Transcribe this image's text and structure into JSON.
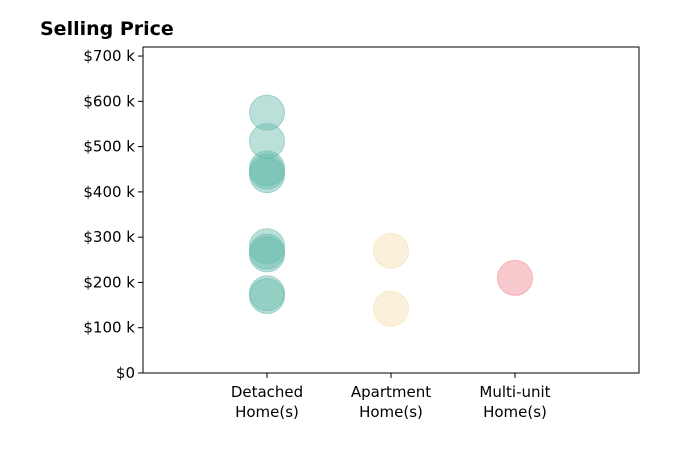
{
  "chart_data": {
    "type": "scatter",
    "title": "Selling Price",
    "xlabel": "",
    "ylabel": "",
    "categories": [
      [
        "Detached",
        "Home(s)"
      ],
      [
        "Apartment",
        "Home(s)"
      ],
      [
        "Multi-unit",
        "Home(s)"
      ]
    ],
    "xlim": [
      -1,
      3
    ],
    "ylim": [
      0,
      720000
    ],
    "y_ticks": [
      0,
      100000,
      200000,
      300000,
      400000,
      500000,
      600000,
      700000
    ],
    "y_tick_labels": [
      "$0",
      "$100 k",
      "$200 k",
      "$300 k",
      "$400 k",
      "$500 k",
      "$600 k",
      "$700 k"
    ],
    "grid": false,
    "legend": "none",
    "series": [
      {
        "color": "#66bbaa",
        "category_index": 0,
        "values": [
          575000,
          512000,
          452000,
          445000,
          437000,
          280000,
          268000,
          262000,
          176000,
          170000
        ]
      },
      {
        "color": "#f6deaa",
        "category_index": 1,
        "values": [
          270000,
          142000
        ]
      },
      {
        "color": "#f08890",
        "category_index": 2,
        "values": [
          210000
        ]
      }
    ]
  }
}
